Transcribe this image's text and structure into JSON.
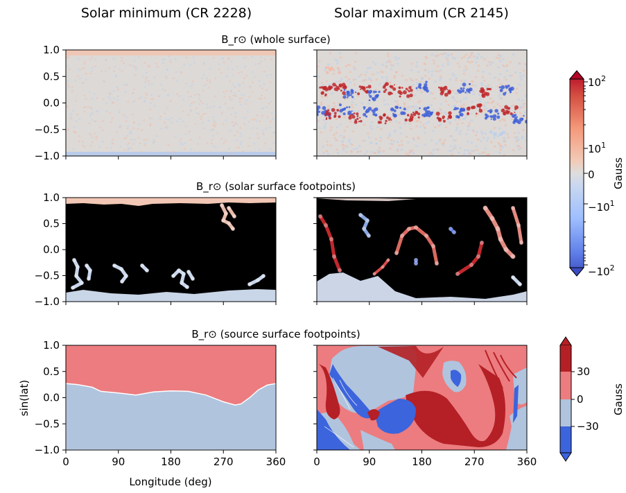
{
  "chart_data": {
    "type": "heatmap",
    "columns": [
      "Solar minimum (CR 2228)",
      "Solar maximum (CR 2145)"
    ],
    "rows": [
      {
        "title": "B_r⊙ (whole surface)"
      },
      {
        "title": "B_r⊙ (solar surface footpoints)"
      },
      {
        "title": "B_r⊙ (source surface footpoints)"
      }
    ],
    "xlabel": "Longitude (deg)",
    "ylabel": "sin(lat)",
    "xlim": [
      0,
      360
    ],
    "ylim": [
      -1,
      1
    ],
    "xticks": [
      "0",
      "90",
      "180",
      "270",
      "360"
    ],
    "yticks": [
      "1.0",
      "0.5",
      "0.0",
      "−0.5",
      "−1.0"
    ],
    "colorbar_top": {
      "label": "Gauss",
      "scale": "symlog",
      "ticks": [
        "10^2",
        "10^1",
        "0",
        "−10^1",
        "−10^2"
      ],
      "colors": [
        "#b40426",
        "#f4987a",
        "#dddddd",
        "#9ebeff",
        "#3b4cc0"
      ]
    },
    "colorbar_bottom": {
      "label": "Gauss",
      "ticks": [
        "30",
        "0",
        "−30"
      ],
      "levels": [
        {
          "range": "> 30",
          "color": "#b42025"
        },
        {
          "range": "0 to 30",
          "color": "#ec7c7f"
        },
        {
          "range": "−30 to 0",
          "color": "#b0c4de"
        },
        {
          "range": "< −30",
          "color": "#3c64dc"
        }
      ]
    },
    "source_surface_min_neutral_line": {
      "longitude": [
        0,
        20,
        45,
        60,
        90,
        120,
        150,
        180,
        210,
        240,
        270,
        290,
        300,
        315,
        330,
        345,
        360
      ],
      "sin_lat": [
        0.27,
        0.25,
        0.2,
        0.12,
        0.09,
        0.05,
        0.11,
        0.13,
        0.12,
        0.05,
        -0.08,
        -0.14,
        -0.12,
        0.0,
        0.15,
        0.24,
        0.27
      ]
    }
  },
  "colors": {
    "black": "#000000",
    "neutral": "#dddddd",
    "pos_weak": "#f4b9a4",
    "pos_strong": "#c0282d",
    "neg_weak": "#b8cfee",
    "neg_strong": "#3f5fd8"
  }
}
